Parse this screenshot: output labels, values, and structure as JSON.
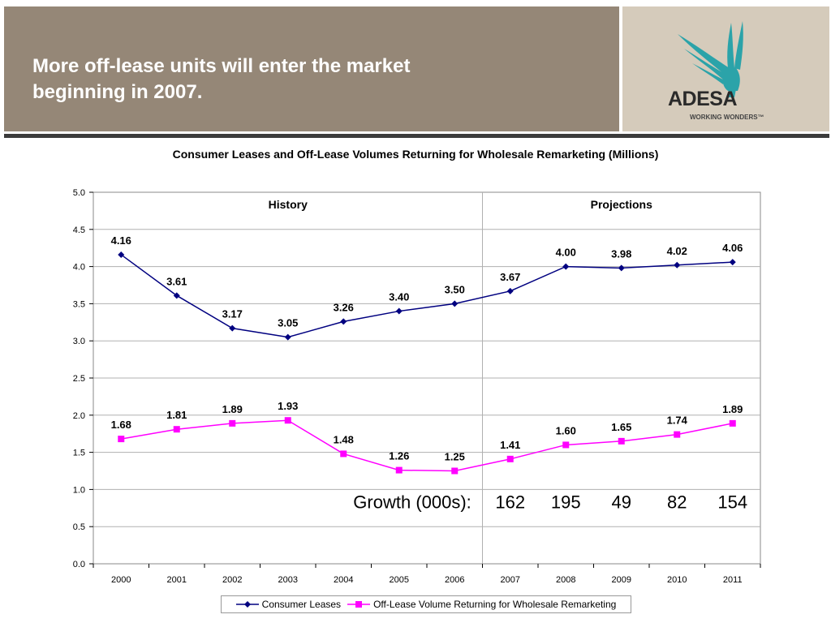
{
  "header": {
    "title": "More off-lease units will enter the market\nbeginning in 2007.",
    "logo_text": "ADESA",
    "logo_tagline": "WORKING WONDERS™",
    "logo_color": "#2ba3a9"
  },
  "chart_data": {
    "type": "line",
    "title": "Consumer Leases and Off-Lease Volumes Returning for Wholesale Remarketing (Millions)",
    "categories": [
      "2000",
      "2001",
      "2002",
      "2003",
      "2004",
      "2005",
      "2006",
      "2007",
      "2008",
      "2009",
      "2010",
      "2011"
    ],
    "series": [
      {
        "name": "Consumer Leases",
        "values": [
          4.16,
          3.61,
          3.17,
          3.05,
          3.26,
          3.4,
          3.5,
          3.67,
          4.0,
          3.98,
          4.02,
          4.06
        ],
        "labels": [
          "4.16",
          "3.61",
          "3.17",
          "3.05",
          "3.26",
          "3.40",
          "3.50",
          "3.67",
          "4.00",
          "3.98",
          "4.02",
          "4.06"
        ],
        "color": "#000080",
        "marker": "diamond"
      },
      {
        "name": "Off-Lease Volume Returning for Wholesale Remarketing",
        "values": [
          1.68,
          1.81,
          1.89,
          1.93,
          1.48,
          1.26,
          1.25,
          1.41,
          1.6,
          1.65,
          1.74,
          1.89
        ],
        "labels": [
          "1.68",
          "1.81",
          "1.89",
          "1.93",
          "1.48",
          "1.26",
          "1.25",
          "1.41",
          "1.60",
          "1.65",
          "1.74",
          "1.89"
        ],
        "color": "#ff00ff",
        "marker": "square"
      }
    ],
    "ylim": [
      0,
      5
    ],
    "yticks": [
      "0.0",
      "0.5",
      "1.0",
      "1.5",
      "2.0",
      "2.5",
      "3.0",
      "3.5",
      "4.0",
      "4.5",
      "5.0"
    ],
    "grid": true,
    "legend": "bottom",
    "sections": [
      {
        "label": "History",
        "from": "2000",
        "to": "2006"
      },
      {
        "label": "Projections",
        "from": "2007",
        "to": "2011"
      }
    ],
    "annotation": {
      "label": "Growth (000s):",
      "values": [
        {
          "year": "2007",
          "value": "162"
        },
        {
          "year": "2008",
          "value": "195"
        },
        {
          "year": "2009",
          "value": "49"
        },
        {
          "year": "2010",
          "value": "82"
        },
        {
          "year": "2011",
          "value": "154"
        }
      ]
    }
  }
}
